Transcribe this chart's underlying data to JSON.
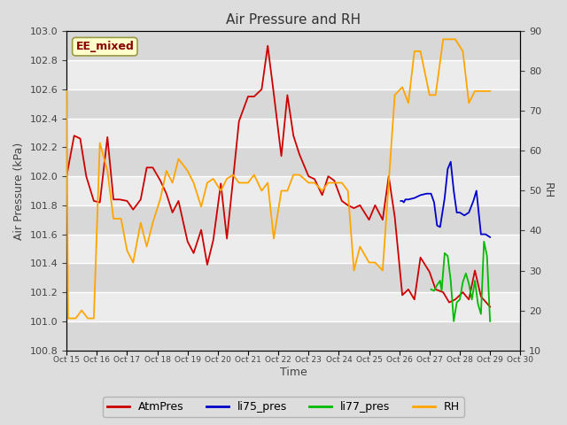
{
  "title": "Air Pressure and RH",
  "xlabel": "Time",
  "ylabel_left": "Air Pressure (kPa)",
  "ylabel_right": "RH",
  "annotation": "EE_mixed",
  "ylim_left": [
    100.8,
    103.0
  ],
  "ylim_right": [
    10,
    90
  ],
  "yticks_left": [
    100.8,
    101.0,
    101.2,
    101.4,
    101.6,
    101.8,
    102.0,
    102.2,
    102.4,
    102.6,
    102.8,
    103.0
  ],
  "yticks_right": [
    10,
    20,
    30,
    40,
    50,
    60,
    70,
    80,
    90
  ],
  "xtick_labels": [
    "Oct 15",
    "Oct 16",
    "Oct 17",
    "Oct 18",
    "Oct 19",
    "Oct 20",
    "Oct 21",
    "Oct 22",
    "Oct 23",
    "Oct 24",
    "Oct 25",
    "Oct 26",
    "Oct 27",
    "Oct 28",
    "Oct 29",
    "Oct 30"
  ],
  "background_color": "#dddddd",
  "plot_bg_stripes": true,
  "colors": {
    "AtmPres": "#cc0000",
    "li75_pres": "#0000cc",
    "li77_pres": "#00bb00",
    "RH": "#ffa500"
  },
  "AtmPres_x": [
    0,
    0.25,
    0.45,
    0.65,
    0.9,
    1.1,
    1.35,
    1.55,
    1.75,
    2.0,
    2.2,
    2.45,
    2.65,
    2.85,
    3.1,
    3.3,
    3.5,
    3.7,
    4.0,
    4.2,
    4.45,
    4.65,
    4.85,
    5.1,
    5.3,
    5.5,
    5.7,
    6.0,
    6.2,
    6.45,
    6.65,
    6.85,
    7.1,
    7.3,
    7.5,
    7.7,
    8.0,
    8.2,
    8.45,
    8.65,
    8.85,
    9.1,
    9.3,
    9.5,
    9.7,
    10.0,
    10.2,
    10.45,
    10.65,
    10.85,
    11.1,
    11.3,
    11.5,
    11.7,
    12.0,
    12.2,
    12.45,
    12.65,
    12.85,
    13.1,
    13.3,
    13.5,
    13.7,
    14.0
  ],
  "AtmPres_y": [
    102.0,
    102.28,
    102.26,
    102.0,
    101.83,
    101.82,
    102.27,
    101.84,
    101.84,
    101.83,
    101.77,
    101.84,
    102.06,
    102.06,
    101.97,
    101.88,
    101.75,
    101.83,
    101.55,
    101.47,
    101.63,
    101.39,
    101.56,
    101.95,
    101.57,
    101.97,
    102.38,
    102.55,
    102.55,
    102.6,
    102.9,
    102.57,
    102.14,
    102.56,
    102.28,
    102.15,
    102.0,
    101.98,
    101.87,
    102.0,
    101.97,
    101.83,
    101.8,
    101.78,
    101.8,
    101.7,
    101.8,
    101.7,
    102.0,
    101.72,
    101.18,
    101.22,
    101.15,
    101.44,
    101.34,
    101.22,
    101.2,
    101.13,
    101.15,
    101.2,
    101.15,
    101.35,
    101.17,
    101.1
  ],
  "li75_pres_x": [
    11.05,
    11.1,
    11.15,
    11.2,
    11.3,
    11.5,
    11.7,
    11.9,
    12.05,
    12.15,
    12.25,
    12.35,
    12.5,
    12.6,
    12.7,
    12.8,
    12.9,
    13.0,
    13.15,
    13.3,
    13.45,
    13.55,
    13.7,
    13.85,
    14.0
  ],
  "li75_pres_y": [
    101.83,
    101.83,
    101.82,
    101.84,
    101.84,
    101.85,
    101.87,
    101.88,
    101.88,
    101.82,
    101.66,
    101.65,
    101.85,
    102.05,
    102.1,
    101.9,
    101.75,
    101.75,
    101.73,
    101.75,
    101.83,
    101.9,
    101.6,
    101.6,
    101.58
  ],
  "li77_pres_x": [
    12.05,
    12.15,
    12.25,
    12.35,
    12.4,
    12.5,
    12.6,
    12.7,
    12.8,
    12.9,
    13.0,
    13.1,
    13.2,
    13.3,
    13.4,
    13.5,
    13.6,
    13.7,
    13.8,
    13.9,
    14.0
  ],
  "li77_pres_y": [
    101.22,
    101.21,
    101.25,
    101.28,
    101.21,
    101.47,
    101.45,
    101.28,
    101.0,
    101.13,
    101.15,
    101.27,
    101.33,
    101.26,
    101.15,
    101.28,
    101.12,
    101.05,
    101.55,
    101.45,
    101.0
  ],
  "RH_x": [
    0,
    0.05,
    0.3,
    0.5,
    0.7,
    0.9,
    1.1,
    1.35,
    1.55,
    1.8,
    2.0,
    2.2,
    2.45,
    2.65,
    2.85,
    3.1,
    3.3,
    3.5,
    3.7,
    4.0,
    4.2,
    4.45,
    4.65,
    4.85,
    5.1,
    5.3,
    5.5,
    5.7,
    6.0,
    6.2,
    6.45,
    6.65,
    6.85,
    7.1,
    7.3,
    7.5,
    7.7,
    8.0,
    8.2,
    8.45,
    8.65,
    8.85,
    9.1,
    9.3,
    9.5,
    9.7,
    10.0,
    10.2,
    10.45,
    10.65,
    10.85,
    11.1,
    11.3,
    11.5,
    11.7,
    12.0,
    12.2,
    12.45,
    12.65,
    12.85,
    13.1,
    13.3,
    13.5,
    13.7,
    14.0
  ],
  "RH_y": [
    75,
    18,
    18,
    20,
    18,
    18,
    62,
    55,
    43,
    43,
    35,
    32,
    42,
    36,
    42,
    48,
    55,
    52,
    58,
    55,
    52,
    46,
    52,
    53,
    50,
    53,
    54,
    52,
    52,
    54,
    50,
    52,
    38,
    50,
    50,
    54,
    54,
    52,
    52,
    50,
    52,
    52,
    52,
    50,
    30,
    36,
    32,
    32,
    30,
    52,
    74,
    76,
    72,
    85,
    85,
    74,
    74,
    88,
    88,
    88,
    85,
    72,
    75,
    75,
    75
  ]
}
